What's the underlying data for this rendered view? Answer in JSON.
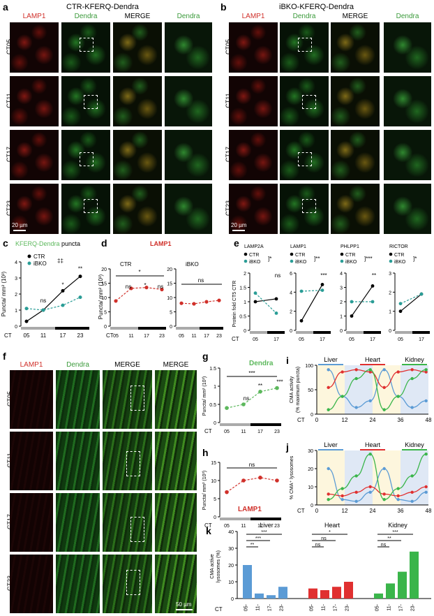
{
  "panel_a": {
    "letter": "a",
    "title": "CTR-KFERQ-Dendra",
    "columns": [
      "LAMP1",
      "Dendra",
      "MERGE",
      "Dendra"
    ],
    "rows": [
      "CT05",
      "CT11",
      "CT17",
      "CT23"
    ],
    "scale": "20 µm"
  },
  "panel_b": {
    "letter": "b",
    "title": "iBKO-KFERQ-Dendra",
    "columns": [
      "LAMP1",
      "Dendra",
      "MERGE",
      "Dendra"
    ],
    "rows": [
      "CT05",
      "CT11",
      "CT17",
      "CT23"
    ],
    "scale": "20 µm"
  },
  "panel_c": {
    "letter": "c",
    "title_green": "KFERQ-Dendra",
    "title_rest": " puncta",
    "legend": [
      "CTR",
      "iBKO"
    ],
    "sig_legend": "‡‡",
    "ylabel": "Puncta/ mm² (10³)",
    "xlabel": "CT",
    "annotations": [
      "ns",
      "*",
      "**"
    ],
    "yticks": [
      "0",
      "1",
      "2",
      "3",
      "4"
    ]
  },
  "panel_d": {
    "letter": "d",
    "title": "LAMP1",
    "sub_ctr": "CTR",
    "sub_ibko": "iBKO",
    "ylabel": "Puncta/ mm² (10³)",
    "xlabel": "CT",
    "annotations_ctr": [
      "*",
      "ns",
      "*",
      "ns"
    ],
    "annotations_ibko": [
      "ns"
    ],
    "yticks": [
      "0",
      "5",
      "10",
      "15",
      "20"
    ]
  },
  "panel_e": {
    "letter": "e",
    "ylabel": "Protein fold CT5 CTR",
    "xlabel": "CT",
    "sub": [
      {
        "title": "LAMP2A",
        "sig": "*",
        "yticks": [
          "0",
          "0.5",
          "1",
          "1.5",
          "2"
        ],
        "annot": "ns"
      },
      {
        "title": "LAMP1",
        "sig": "**",
        "yticks": [
          "0",
          "2",
          "4",
          "6"
        ],
        "annot": "***"
      },
      {
        "title": "PHLPP1",
        "sig": "***",
        "yticks": [
          "0",
          "1",
          "2",
          "3",
          "4"
        ],
        "annot": "**"
      },
      {
        "title": "RICTOR",
        "sig": "*",
        "yticks": [
          "0",
          "1",
          "2",
          "3"
        ],
        "annot": ""
      }
    ],
    "legend": [
      "CTR",
      "iBKO"
    ]
  },
  "panel_f": {
    "letter": "f",
    "columns": [
      "LAMP1",
      "Dendra",
      "MERGE",
      "MERGE"
    ],
    "rows": [
      "CT05",
      "CT11",
      "CT17",
      "CT23"
    ],
    "scale": "50 µm"
  },
  "panel_g": {
    "letter": "g",
    "title": "Dendra",
    "ylabel": "Puncta/ mm² (10³)",
    "xlabel": "CT",
    "annotations": [
      "***",
      "ns",
      "**",
      "***"
    ],
    "yticks": [
      "0",
      "0.5",
      "1",
      "1.5"
    ]
  },
  "panel_h": {
    "letter": "h",
    "title": "LAMP1",
    "ylabel": "Puncta/ mm² (10³)",
    "xlabel": "CT",
    "annotations": [
      "ns"
    ],
    "yticks": [
      "0",
      "5",
      "10",
      "15"
    ]
  },
  "panel_i": {
    "letter": "i",
    "ylabel": "CMA activity\n(% maximum puncta)",
    "xlabel": "CT",
    "organs": [
      "Liver",
      "Heart",
      "Kidney"
    ],
    "yticks": [
      "0",
      "50",
      "100"
    ],
    "xticks": [
      "0",
      "12",
      "24",
      "36",
      "48"
    ]
  },
  "panel_j": {
    "letter": "j",
    "ylabel": "% CMA⁺ lysosomes",
    "xlabel": "CT",
    "organs": [
      "Liver",
      "Heart",
      "Kidney"
    ],
    "yticks": [
      "0",
      "10",
      "20",
      "30"
    ],
    "xticks": [
      "0",
      "12",
      "24",
      "36",
      "48"
    ]
  },
  "panel_k": {
    "letter": "k",
    "ylabel": "CMA active\nlysosomes (%)",
    "xlabel": "CT",
    "groups": [
      "Liver",
      "Heart",
      "Kidney"
    ],
    "yticks": [
      "0",
      "10",
      "20",
      "30",
      "40"
    ],
    "annot_liver": [
      "***",
      "***",
      "**"
    ],
    "annot_heart": [
      "*",
      "ns",
      "ns"
    ],
    "annot_kidney": [
      "***",
      "**",
      "ns"
    ]
  },
  "shared_ct_ticks": [
    "05",
    "11",
    "17",
    "23"
  ],
  "colors": {
    "ctr": "#000000",
    "ibko": "#2a9d96",
    "lamp1": "#d0302a",
    "dendra": "#5cb85c",
    "liver": "#5b9bd5",
    "heart": "#e03030",
    "kidney": "#3ab54a"
  },
  "chart_data": [
    {
      "type": "line",
      "panel": "c",
      "x": [
        "05",
        "11",
        "17",
        "23"
      ],
      "ylim": [
        0,
        4
      ],
      "series": [
        {
          "name": "CTR",
          "values": [
            0.3,
            1.0,
            2.2,
            3.1
          ]
        },
        {
          "name": "iBKO",
          "values": [
            1.1,
            1.0,
            1.3,
            1.8
          ]
        }
      ]
    },
    {
      "type": "line",
      "panel": "d-CTR",
      "x": [
        "05",
        "11",
        "17",
        "23"
      ],
      "ylim": [
        0,
        20
      ],
      "series": [
        {
          "values": [
            8.8,
            13.2,
            13.5,
            12.8
          ]
        }
      ]
    },
    {
      "type": "line",
      "panel": "d-iBKO",
      "x": [
        "05",
        "11",
        "17",
        "23"
      ],
      "ylim": [
        0,
        20
      ],
      "series": [
        {
          "values": [
            8.0,
            7.8,
            8.5,
            9.0
          ]
        }
      ]
    },
    {
      "type": "line",
      "panel": "e-LAMP2A",
      "x": [
        "05",
        "17"
      ],
      "ylim": [
        0,
        2
      ],
      "series": [
        {
          "name": "CTR",
          "values": [
            1.0,
            1.1
          ]
        },
        {
          "name": "iBKO",
          "values": [
            1.3,
            0.6
          ]
        }
      ]
    },
    {
      "type": "line",
      "panel": "e-LAMP1",
      "x": [
        "05",
        "17"
      ],
      "ylim": [
        0,
        6
      ],
      "series": [
        {
          "name": "CTR",
          "values": [
            1.0,
            4.8
          ]
        },
        {
          "name": "iBKO",
          "values": [
            4.1,
            4.2
          ]
        }
      ]
    },
    {
      "type": "line",
      "panel": "e-PHLPP1",
      "x": [
        "05",
        "17"
      ],
      "ylim": [
        0,
        4
      ],
      "series": [
        {
          "name": "CTR",
          "values": [
            1.0,
            3.1
          ]
        },
        {
          "name": "iBKO",
          "values": [
            2.0,
            2.0
          ]
        }
      ]
    },
    {
      "type": "line",
      "panel": "e-RICTOR",
      "x": [
        "05",
        "17"
      ],
      "ylim": [
        0,
        3
      ],
      "series": [
        {
          "name": "CTR",
          "values": [
            1.0,
            1.9
          ]
        },
        {
          "name": "iBKO",
          "values": [
            1.4,
            1.9
          ]
        }
      ]
    },
    {
      "type": "line",
      "panel": "g",
      "x": [
        "05",
        "11",
        "17",
        "23"
      ],
      "ylim": [
        0,
        1.5
      ],
      "series": [
        {
          "values": [
            0.4,
            0.5,
            0.85,
            0.95
          ]
        }
      ]
    },
    {
      "type": "line",
      "panel": "h",
      "x": [
        "05",
        "11",
        "17",
        "23"
      ],
      "ylim": [
        0,
        15
      ],
      "series": [
        {
          "values": [
            6.8,
            10.0,
            10.8,
            10.0
          ]
        }
      ]
    },
    {
      "type": "line",
      "panel": "i",
      "x": [
        0,
        12,
        24,
        36,
        48
      ],
      "ylim": [
        0,
        110
      ],
      "series": [
        {
          "name": "Liver",
          "points": [
            [
              5,
              100
            ],
            [
              11,
              40
            ],
            [
              17,
              15
            ],
            [
              23,
              30
            ],
            [
              29,
              100
            ],
            [
              35,
              40
            ],
            [
              41,
              15
            ],
            [
              47,
              30
            ]
          ]
        },
        {
          "name": "Heart",
          "points": [
            [
              5,
              60
            ],
            [
              11,
              95
            ],
            [
              17,
              100
            ],
            [
              23,
              95
            ],
            [
              29,
              60
            ],
            [
              35,
              95
            ],
            [
              41,
              100
            ],
            [
              47,
              95
            ]
          ]
        },
        {
          "name": "Kidney",
          "points": [
            [
              5,
              10
            ],
            [
              11,
              40
            ],
            [
              17,
              80
            ],
            [
              23,
              100
            ],
            [
              29,
              10
            ],
            [
              35,
              40
            ],
            [
              41,
              80
            ],
            [
              47,
              100
            ]
          ]
        }
      ]
    },
    {
      "type": "line",
      "panel": "j",
      "x": [
        0,
        12,
        24,
        36,
        48
      ],
      "ylim": [
        0,
        30
      ],
      "series": [
        {
          "name": "Liver",
          "points": [
            [
              5,
              20
            ],
            [
              11,
              3
            ],
            [
              17,
              2
            ],
            [
              23,
              7
            ],
            [
              29,
              20
            ],
            [
              35,
              3
            ],
            [
              41,
              2
            ],
            [
              47,
              7
            ]
          ]
        },
        {
          "name": "Heart",
          "points": [
            [
              5,
              6
            ],
            [
              11,
              5
            ],
            [
              17,
              7
            ],
            [
              23,
              10
            ],
            [
              29,
              6
            ],
            [
              35,
              5
            ],
            [
              41,
              7
            ],
            [
              47,
              10
            ]
          ]
        },
        {
          "name": "Kidney",
          "points": [
            [
              5,
              3
            ],
            [
              11,
              9
            ],
            [
              17,
              16
            ],
            [
              23,
              28
            ],
            [
              29,
              3
            ],
            [
              35,
              9
            ],
            [
              41,
              16
            ],
            [
              47,
              28
            ]
          ]
        }
      ]
    },
    {
      "type": "bar",
      "panel": "k",
      "categories": [
        "05",
        "11",
        "17",
        "23"
      ],
      "ylim": [
        0,
        40
      ],
      "series": [
        {
          "name": "Liver",
          "values": [
            20,
            3,
            2,
            7
          ]
        },
        {
          "name": "Heart",
          "values": [
            6,
            5,
            7,
            10
          ]
        },
        {
          "name": "Kidney",
          "values": [
            3,
            9,
            16,
            28
          ]
        }
      ]
    }
  ]
}
